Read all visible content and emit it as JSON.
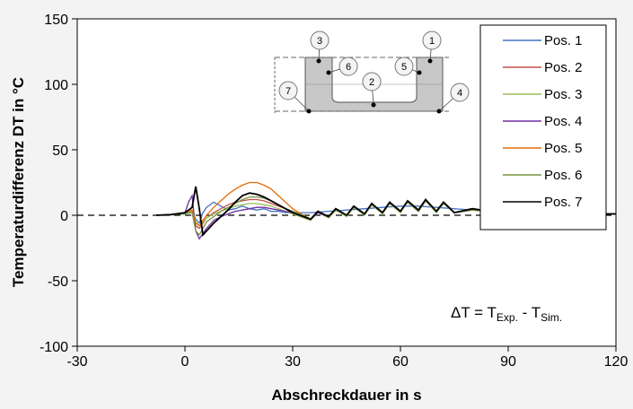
{
  "chart_data": {
    "type": "line",
    "xlabel": "Abschreckdauer  in s",
    "ylabel": "Temperaturdifferenz DT in °C",
    "xlim": [
      -30,
      120
    ],
    "ylim": [
      -100,
      150
    ],
    "xticks": [
      -30,
      0,
      30,
      60,
      90,
      120
    ],
    "yticks": [
      -100,
      -50,
      0,
      50,
      100,
      150
    ],
    "legend_position": "top-right",
    "reference_line": {
      "y": 0,
      "style": "dashed"
    },
    "inset_labels": [
      "1",
      "2",
      "3",
      "4",
      "5",
      "6",
      "7"
    ],
    "series": [
      {
        "name": "Pos. 1",
        "color": "#4472c4",
        "values": [
          [
            -8,
            0
          ],
          [
            -4,
            0.5
          ],
          [
            0,
            2
          ],
          [
            2,
            3
          ],
          [
            3,
            -3
          ],
          [
            4,
            -6
          ],
          [
            5,
            2
          ],
          [
            6,
            6
          ],
          [
            8,
            10
          ],
          [
            10,
            7
          ],
          [
            12,
            4
          ],
          [
            14,
            5
          ],
          [
            16,
            7
          ],
          [
            18,
            5
          ],
          [
            20,
            4
          ],
          [
            22,
            5
          ],
          [
            24,
            3
          ],
          [
            26,
            3
          ],
          [
            28,
            2
          ],
          [
            30,
            2
          ],
          [
            35,
            2
          ],
          [
            40,
            3
          ],
          [
            45,
            4
          ],
          [
            50,
            5
          ],
          [
            55,
            6
          ],
          [
            60,
            7
          ],
          [
            65,
            7
          ],
          [
            70,
            6
          ],
          [
            75,
            5
          ],
          [
            80,
            4
          ],
          [
            85,
            3
          ],
          [
            90,
            2
          ],
          [
            100,
            1
          ],
          [
            110,
            1
          ],
          [
            120,
            1
          ]
        ]
      },
      {
        "name": "Pos. 2",
        "color": "#c0504d",
        "values": [
          [
            -8,
            0
          ],
          [
            -4,
            0.5
          ],
          [
            0,
            2
          ],
          [
            2,
            4
          ],
          [
            3,
            -8
          ],
          [
            4,
            -10
          ],
          [
            5,
            -6
          ],
          [
            6,
            -2
          ],
          [
            8,
            2
          ],
          [
            10,
            5
          ],
          [
            12,
            8
          ],
          [
            14,
            10
          ],
          [
            16,
            11
          ],
          [
            18,
            12
          ],
          [
            20,
            12
          ],
          [
            22,
            11
          ],
          [
            24,
            9
          ],
          [
            26,
            7
          ],
          [
            28,
            5
          ],
          [
            30,
            3
          ],
          [
            33,
            0
          ],
          [
            35,
            -3
          ],
          [
            37,
            3
          ],
          [
            40,
            -1
          ],
          [
            42,
            5
          ],
          [
            45,
            0
          ],
          [
            47,
            7
          ],
          [
            50,
            1
          ],
          [
            52,
            9
          ],
          [
            55,
            2
          ],
          [
            57,
            10
          ],
          [
            60,
            3
          ],
          [
            62,
            11
          ],
          [
            65,
            4
          ],
          [
            67,
            12
          ],
          [
            70,
            3
          ],
          [
            72,
            10
          ],
          [
            75,
            2
          ],
          [
            80,
            5
          ],
          [
            85,
            3
          ],
          [
            90,
            2
          ],
          [
            100,
            1
          ],
          [
            110,
            1
          ],
          [
            120,
            1
          ]
        ]
      },
      {
        "name": "Pos. 3",
        "color": "#9bbb59",
        "values": [
          [
            -8,
            0
          ],
          [
            -4,
            0.5
          ],
          [
            0,
            1
          ],
          [
            2,
            3
          ],
          [
            3,
            -5
          ],
          [
            4,
            -8
          ],
          [
            5,
            -5
          ],
          [
            6,
            -2
          ],
          [
            8,
            1
          ],
          [
            10,
            3
          ],
          [
            12,
            5
          ],
          [
            14,
            7
          ],
          [
            16,
            8
          ],
          [
            18,
            9
          ],
          [
            20,
            9
          ],
          [
            22,
            8
          ],
          [
            24,
            7
          ],
          [
            26,
            5
          ],
          [
            28,
            3
          ],
          [
            30,
            1
          ],
          [
            33,
            -2
          ],
          [
            35,
            -4
          ],
          [
            37,
            2
          ],
          [
            40,
            -2
          ],
          [
            42,
            4
          ],
          [
            45,
            -1
          ],
          [
            47,
            6
          ],
          [
            50,
            0
          ],
          [
            52,
            8
          ],
          [
            55,
            1
          ],
          [
            57,
            9
          ],
          [
            60,
            2
          ],
          [
            62,
            10
          ],
          [
            65,
            3
          ],
          [
            67,
            11
          ],
          [
            70,
            2
          ],
          [
            72,
            9
          ],
          [
            75,
            2
          ],
          [
            80,
            4
          ],
          [
            85,
            3
          ],
          [
            90,
            2
          ],
          [
            100,
            1
          ],
          [
            110,
            1
          ],
          [
            120,
            1
          ]
        ]
      },
      {
        "name": "Pos. 4",
        "color": "#7030a0",
        "values": [
          [
            -8,
            0
          ],
          [
            -4,
            0.5
          ],
          [
            0,
            2
          ],
          [
            1,
            10
          ],
          [
            2,
            15
          ],
          [
            3,
            -12
          ],
          [
            4,
            -18
          ],
          [
            5,
            -14
          ],
          [
            6,
            -10
          ],
          [
            8,
            -4
          ],
          [
            10,
            -1
          ],
          [
            12,
            1
          ],
          [
            14,
            3
          ],
          [
            16,
            4
          ],
          [
            18,
            5
          ],
          [
            20,
            6
          ],
          [
            22,
            6
          ],
          [
            24,
            5
          ],
          [
            26,
            4
          ],
          [
            28,
            3
          ],
          [
            30,
            2
          ],
          [
            33,
            -1
          ],
          [
            35,
            -3
          ],
          [
            37,
            2
          ],
          [
            40,
            -1
          ],
          [
            42,
            4
          ],
          [
            45,
            0
          ],
          [
            47,
            6
          ],
          [
            50,
            1
          ],
          [
            52,
            8
          ],
          [
            55,
            2
          ],
          [
            57,
            9
          ],
          [
            60,
            3
          ],
          [
            62,
            10
          ],
          [
            65,
            3
          ],
          [
            67,
            11
          ],
          [
            70,
            3
          ],
          [
            72,
            9
          ],
          [
            75,
            2
          ],
          [
            80,
            4
          ],
          [
            85,
            3
          ],
          [
            90,
            2
          ],
          [
            100,
            1
          ],
          [
            110,
            1
          ],
          [
            120,
            1
          ]
        ]
      },
      {
        "name": "Pos. 5",
        "color": "#e46c0a",
        "values": [
          [
            -8,
            0
          ],
          [
            -4,
            0.5
          ],
          [
            0,
            2
          ],
          [
            2,
            4
          ],
          [
            3,
            -6
          ],
          [
            4,
            -8
          ],
          [
            5,
            -4
          ],
          [
            6,
            0
          ],
          [
            8,
            6
          ],
          [
            10,
            11
          ],
          [
            12,
            16
          ],
          [
            14,
            20
          ],
          [
            16,
            23
          ],
          [
            18,
            25
          ],
          [
            20,
            25
          ],
          [
            22,
            23
          ],
          [
            24,
            20
          ],
          [
            26,
            15
          ],
          [
            28,
            10
          ],
          [
            30,
            5
          ],
          [
            33,
            0
          ],
          [
            35,
            -3
          ],
          [
            37,
            3
          ],
          [
            40,
            -1
          ],
          [
            42,
            5
          ],
          [
            45,
            0
          ],
          [
            47,
            7
          ],
          [
            50,
            1
          ],
          [
            52,
            9
          ],
          [
            55,
            2
          ],
          [
            57,
            10
          ],
          [
            60,
            3
          ],
          [
            62,
            11
          ],
          [
            65,
            4
          ],
          [
            67,
            12
          ],
          [
            70,
            3
          ],
          [
            72,
            10
          ],
          [
            75,
            2
          ],
          [
            80,
            5
          ],
          [
            85,
            3
          ],
          [
            90,
            2
          ],
          [
            100,
            1
          ],
          [
            110,
            1
          ],
          [
            120,
            1
          ]
        ]
      },
      {
        "name": "Pos. 6",
        "color": "#77933c",
        "values": [
          [
            -8,
            0
          ],
          [
            -4,
            0.5
          ],
          [
            0,
            1
          ],
          [
            2,
            2
          ],
          [
            3,
            -12
          ],
          [
            4,
            -15
          ],
          [
            5,
            -10
          ],
          [
            6,
            -5
          ],
          [
            8,
            -1
          ],
          [
            10,
            3
          ],
          [
            12,
            6
          ],
          [
            14,
            9
          ],
          [
            16,
            12
          ],
          [
            18,
            14
          ],
          [
            20,
            14
          ],
          [
            22,
            13
          ],
          [
            24,
            11
          ],
          [
            26,
            8
          ],
          [
            28,
            5
          ],
          [
            30,
            3
          ],
          [
            33,
            0
          ],
          [
            35,
            -3
          ],
          [
            37,
            3
          ],
          [
            40,
            -1
          ],
          [
            42,
            4
          ],
          [
            45,
            0
          ],
          [
            47,
            6
          ],
          [
            50,
            1
          ],
          [
            52,
            8
          ],
          [
            55,
            2
          ],
          [
            57,
            9
          ],
          [
            60,
            3
          ],
          [
            62,
            10
          ],
          [
            65,
            3
          ],
          [
            67,
            11
          ],
          [
            70,
            3
          ],
          [
            72,
            9
          ],
          [
            75,
            2
          ],
          [
            80,
            4
          ],
          [
            85,
            3
          ],
          [
            90,
            2
          ],
          [
            100,
            1
          ],
          [
            110,
            1
          ],
          [
            120,
            1
          ]
        ]
      },
      {
        "name": "Pos. 7",
        "color": "#000000",
        "values": [
          [
            -8,
            0
          ],
          [
            -4,
            0.5
          ],
          [
            0,
            2
          ],
          [
            2,
            6
          ],
          [
            3,
            22
          ],
          [
            4,
            5
          ],
          [
            5,
            -15
          ],
          [
            6,
            -12
          ],
          [
            8,
            -6
          ],
          [
            10,
            -1
          ],
          [
            12,
            4
          ],
          [
            14,
            10
          ],
          [
            16,
            15
          ],
          [
            18,
            17
          ],
          [
            20,
            16
          ],
          [
            22,
            14
          ],
          [
            24,
            11
          ],
          [
            26,
            8
          ],
          [
            28,
            5
          ],
          [
            30,
            2
          ],
          [
            33,
            -1
          ],
          [
            35,
            -3
          ],
          [
            37,
            3
          ],
          [
            40,
            -1
          ],
          [
            42,
            5
          ],
          [
            45,
            0
          ],
          [
            47,
            7
          ],
          [
            50,
            1
          ],
          [
            52,
            9
          ],
          [
            55,
            2
          ],
          [
            57,
            10
          ],
          [
            60,
            3
          ],
          [
            62,
            11
          ],
          [
            65,
            4
          ],
          [
            67,
            12
          ],
          [
            70,
            3
          ],
          [
            72,
            10
          ],
          [
            75,
            2
          ],
          [
            80,
            5
          ],
          [
            85,
            3
          ],
          [
            90,
            2
          ],
          [
            100,
            1
          ],
          [
            110,
            1
          ],
          [
            120,
            1
          ]
        ]
      }
    ]
  },
  "annotation": {
    "delta": "ΔT = T",
    "sub1": "Exp.",
    "mid": " - T",
    "sub2": "Sim."
  },
  "colors": {
    "background": "#f3f3f3",
    "plot_background": "#ffffff",
    "axis": "#000000"
  }
}
